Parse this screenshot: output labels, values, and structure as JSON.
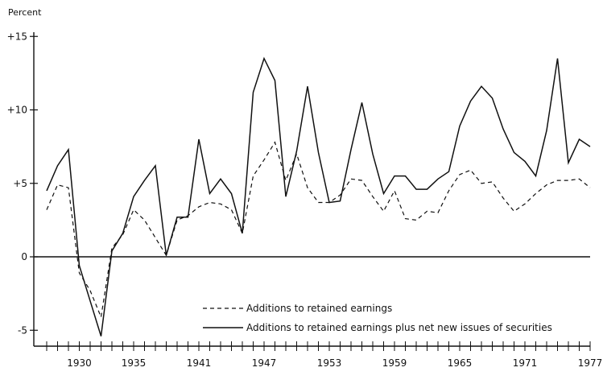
{
  "chart_data": {
    "type": "line",
    "title": "",
    "xlabel": "",
    "ylabel": "Percent",
    "ylim": [
      -6.5,
      15
    ],
    "xlim": [
      1927,
      1977
    ],
    "y_ticks": [
      15,
      10,
      5,
      0,
      -5
    ],
    "y_tick_labels": [
      "+15",
      "+10",
      "+5",
      "0",
      "-5"
    ],
    "x_tick_labels": [
      "1930",
      "1935",
      "1941",
      "1947",
      "1953",
      "1959",
      "1965",
      "1971",
      "1977"
    ],
    "x_tick_values": [
      1930,
      1935,
      1941,
      1947,
      1953,
      1959,
      1965,
      1971,
      1977
    ],
    "grid": false,
    "legend_position": "bottom-right",
    "x": [
      1927,
      1928,
      1929,
      1930,
      1931,
      1932,
      1933,
      1934,
      1935,
      1936,
      1937,
      1938,
      1939,
      1940,
      1941,
      1942,
      1943,
      1944,
      1945,
      1946,
      1947,
      1948,
      1949,
      1950,
      1951,
      1952,
      1953,
      1954,
      1955,
      1956,
      1957,
      1958,
      1959,
      1960,
      1961,
      1962,
      1963,
      1964,
      1965,
      1966,
      1967,
      1968,
      1969,
      1970,
      1971,
      1972,
      1973,
      1974,
      1975,
      1976,
      1977
    ],
    "series": [
      {
        "name": "Additions to retained earnings",
        "style": "dashed",
        "values": [
          3.2,
          4.9,
          4.7,
          -1.1,
          -2.3,
          -4.1,
          0.6,
          1.5,
          3.2,
          2.5,
          1.3,
          0.1,
          2.5,
          2.8,
          3.4,
          3.7,
          3.6,
          3.2,
          1.6,
          5.5,
          6.6,
          7.8,
          5.2,
          7.0,
          4.7,
          3.7,
          3.7,
          4.2,
          5.3,
          5.2,
          4.1,
          3.1,
          4.5,
          2.6,
          2.5,
          3.1,
          3.0,
          4.5,
          5.6,
          5.9,
          5.0,
          5.1,
          4.0,
          3.1,
          3.6,
          4.3,
          4.9,
          5.2,
          5.2,
          5.3,
          4.7
        ]
      },
      {
        "name": "Additions to retained earnings plus net new issues of securities",
        "style": "solid",
        "values": [
          4.5,
          6.2,
          7.3,
          -0.6,
          -3.0,
          -5.4,
          0.4,
          1.6,
          4.1,
          5.2,
          6.2,
          0.1,
          2.7,
          2.7,
          8.0,
          4.3,
          5.3,
          4.3,
          1.6,
          11.2,
          13.5,
          12.0,
          4.1,
          7.2,
          11.6,
          7.1,
          3.7,
          3.8,
          7.3,
          10.5,
          7.0,
          4.3,
          5.5,
          5.5,
          4.6,
          4.6,
          5.3,
          5.8,
          8.9,
          10.6,
          11.6,
          10.8,
          8.7,
          7.1,
          6.5,
          5.5,
          8.6,
          13.5,
          6.4,
          8.0,
          7.5
        ]
      }
    ]
  }
}
